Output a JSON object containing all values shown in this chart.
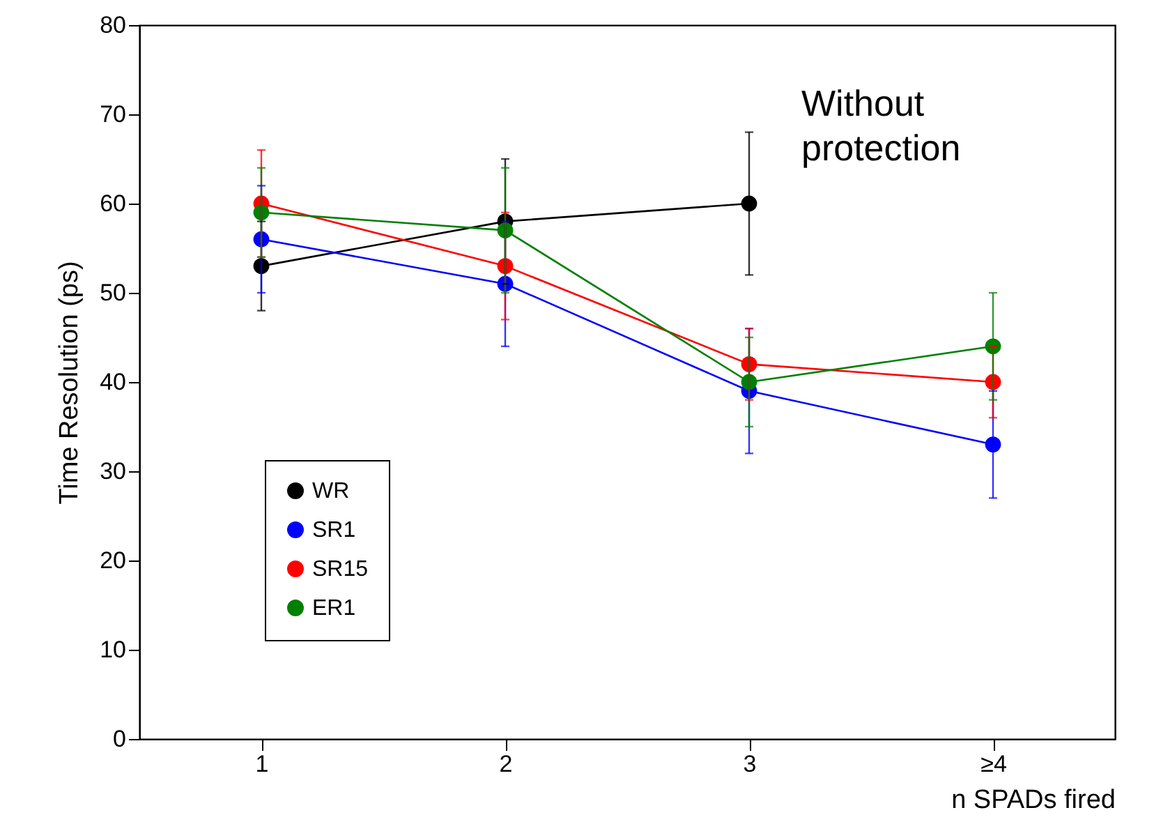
{
  "chart_data": {
    "type": "line",
    "xlabel": "n SPADs fired",
    "ylabel": "Time Resolution (ps)",
    "categories": [
      "1",
      "2",
      "3",
      "≥4"
    ],
    "ylim": [
      0,
      80
    ],
    "yticks": [
      0,
      10,
      20,
      30,
      40,
      50,
      60,
      70,
      80
    ],
    "grid": false,
    "legend": "bottom left",
    "marker": "circle",
    "line_style": "solid",
    "annotations": [
      "Without protection"
    ],
    "series": [
      {
        "name": "WR",
        "color": "#000000",
        "values": [
          53,
          58,
          60,
          null
        ],
        "errors": [
          5,
          7,
          8,
          null
        ]
      },
      {
        "name": "SR1",
        "color": "#0000ff",
        "values": [
          56,
          51,
          39,
          33
        ],
        "errors": [
          6,
          7,
          7,
          6
        ]
      },
      {
        "name": "SR15",
        "color": "#ff0000",
        "values": [
          60,
          53,
          42,
          40
        ],
        "errors": [
          6,
          6,
          4,
          4
        ]
      },
      {
        "name": "ER1",
        "color": "#008000",
        "values": [
          59,
          57,
          40,
          44
        ],
        "errors": [
          5,
          7,
          5,
          6
        ]
      }
    ]
  }
}
